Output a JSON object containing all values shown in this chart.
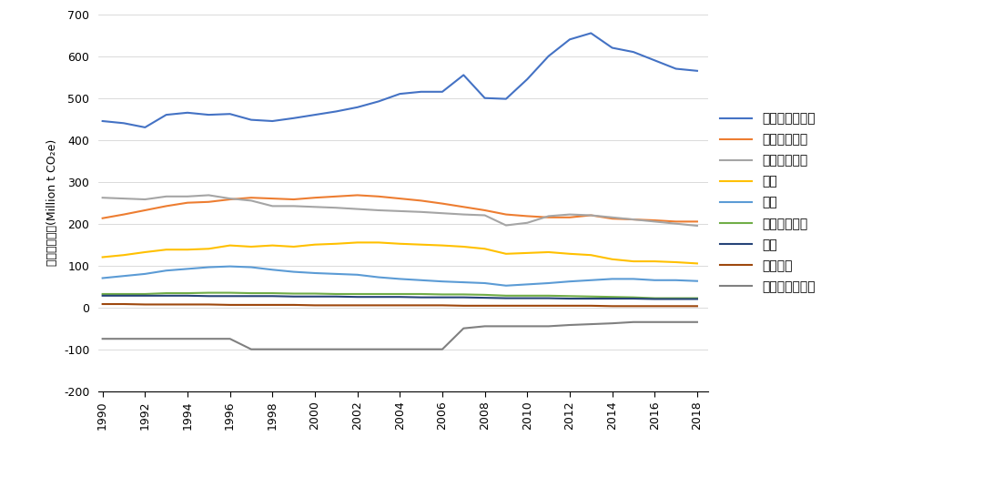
{
  "years": [
    1990,
    1991,
    1992,
    1993,
    1994,
    1995,
    1996,
    1997,
    1998,
    1999,
    2000,
    2001,
    2002,
    2003,
    2004,
    2005,
    2006,
    2007,
    2008,
    2009,
    2010,
    2011,
    2012,
    2013,
    2014,
    2015,
    2016,
    2017,
    2018
  ],
  "series": {
    "电力与供热部门": {
      "color": "#4472C4",
      "values": [
        445,
        440,
        430,
        460,
        465,
        460,
        462,
        448,
        445,
        452,
        460,
        468,
        478,
        492,
        510,
        515,
        515,
        555,
        500,
        498,
        545,
        600,
        640,
        655,
        620,
        610,
        590,
        570,
        565
      ]
    },
    "交通运输部门": {
      "color": "#ED7D31",
      "values": [
        213,
        222,
        232,
        242,
        250,
        252,
        258,
        262,
        260,
        258,
        262,
        265,
        268,
        265,
        260,
        255,
        248,
        240,
        232,
        222,
        218,
        215,
        215,
        220,
        212,
        210,
        208,
        205,
        205
      ]
    },
    "制造与建筑业": {
      "color": "#A5A5A5",
      "values": [
        262,
        260,
        258,
        265,
        265,
        268,
        260,
        255,
        242,
        242,
        240,
        238,
        235,
        232,
        230,
        228,
        225,
        222,
        220,
        196,
        202,
        218,
        222,
        220,
        215,
        210,
        205,
        200,
        195
      ]
    },
    "住宅": {
      "color": "#FFC000",
      "values": [
        120,
        125,
        132,
        138,
        138,
        140,
        148,
        145,
        148,
        145,
        150,
        152,
        155,
        155,
        152,
        150,
        148,
        145,
        140,
        128,
        130,
        132,
        128,
        125,
        115,
        110,
        110,
        108,
        105
      ]
    },
    "工业": {
      "color": "#5B9BD5",
      "values": [
        70,
        75,
        80,
        88,
        92,
        96,
        98,
        96,
        90,
        85,
        82,
        80,
        78,
        72,
        68,
        65,
        62,
        60,
        58,
        52,
        55,
        58,
        62,
        65,
        68,
        68,
        65,
        65,
        63
      ]
    },
    "其他燃料燃烧": {
      "color": "#70AD47",
      "values": [
        32,
        32,
        32,
        34,
        34,
        35,
        35,
        34,
        34,
        33,
        33,
        32,
        32,
        32,
        32,
        32,
        31,
        31,
        30,
        28,
        28,
        28,
        27,
        26,
        25,
        24,
        22,
        22,
        22
      ]
    },
    "农业": {
      "color": "#264478",
      "values": [
        28,
        28,
        28,
        28,
        28,
        27,
        27,
        27,
        27,
        26,
        26,
        26,
        25,
        25,
        25,
        24,
        24,
        24,
        23,
        22,
        22,
        22,
        21,
        21,
        21,
        21,
        20,
        20,
        20
      ]
    },
    "逸散排放": {
      "color": "#9E480E",
      "values": [
        8,
        8,
        7,
        7,
        7,
        7,
        6,
        6,
        6,
        6,
        5,
        5,
        5,
        5,
        5,
        5,
        5,
        4,
        4,
        4,
        4,
        4,
        4,
        4,
        3,
        3,
        3,
        3,
        3
      ]
    },
    "土地利用与林业": {
      "color": "#808080",
      "values": [
        -75,
        -75,
        -75,
        -75,
        -75,
        -75,
        -75,
        -100,
        -100,
        -100,
        -100,
        -100,
        -100,
        -100,
        -100,
        -100,
        -100,
        -50,
        -45,
        -45,
        -45,
        -45,
        -42,
        -40,
        -38,
        -35,
        -35,
        -35,
        -35
      ]
    }
  },
  "ylabel": "各部门碳排放(Million t CO₂e)",
  "ylim": [
    -200,
    700
  ],
  "yticks": [
    -200,
    -100,
    0,
    100,
    200,
    300,
    400,
    500,
    600,
    700
  ],
  "xticks": [
    1990,
    1992,
    1994,
    1996,
    1998,
    2000,
    2002,
    2004,
    2006,
    2008,
    2010,
    2012,
    2014,
    2016,
    2018
  ],
  "legend_order": [
    "电力与供热部门",
    "交通运输部门",
    "制造与建筑业",
    "住宅",
    "工业",
    "其他燃料燃烧",
    "农业",
    "逸散排放",
    "土地利用与林业"
  ],
  "background_color": "#FFFFFF",
  "figsize": [
    10.8,
    5.24
  ],
  "dpi": 100
}
